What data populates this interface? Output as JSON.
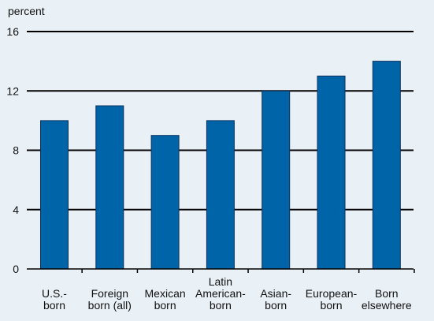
{
  "chart_data": {
    "type": "bar",
    "title": "",
    "xlabel": "",
    "ylabel": "percent",
    "ylim": [
      0,
      16
    ],
    "yticks": [
      0,
      4,
      8,
      12,
      16
    ],
    "grid": true,
    "legend": "none",
    "categories": [
      [
        "U.S.-",
        "born"
      ],
      [
        "Foreign",
        "born (all)"
      ],
      [
        "Mexican",
        "born"
      ],
      [
        "Latin",
        "American-",
        "born"
      ],
      [
        "Asian-",
        "born"
      ],
      [
        "European-",
        "born"
      ],
      [
        "Born",
        "elsewhere"
      ]
    ],
    "values": [
      10,
      11,
      9,
      10,
      12,
      13,
      14
    ],
    "colors": {
      "bar": "#0064a8",
      "bar_edge": "#0a2f5c",
      "background": "#e9f1f7",
      "grid": "#000000"
    }
  }
}
